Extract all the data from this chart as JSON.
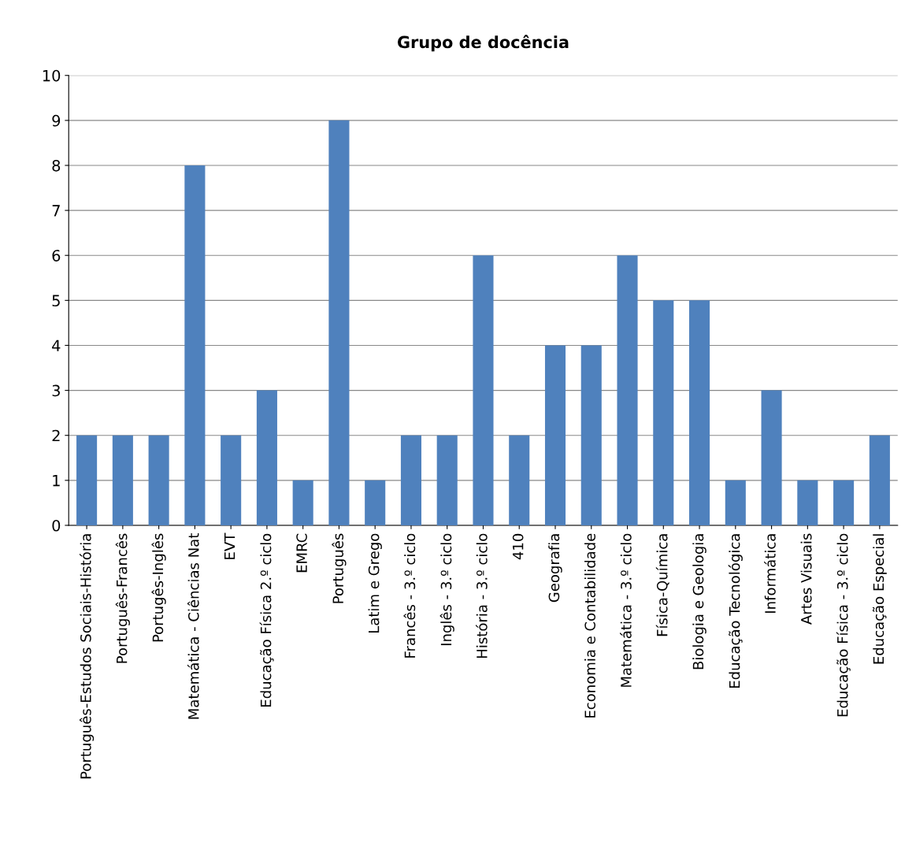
{
  "chart_data": {
    "type": "bar",
    "title": "Grupo de docência",
    "categories": [
      "Português-Estudos Sociais-História",
      "Português-Francês",
      "Portugês-Inglês",
      "Matemática - Ciências Nat",
      "EVT",
      "Educação Física 2.º ciclo",
      "EMRC",
      "Português",
      "Latim e Grego",
      "Francês - 3.º ciclo",
      "Inglês - 3.º ciclo",
      "História - 3.º ciclo",
      "410",
      "Geografia",
      "Economia e Contabilidade",
      "Matemática - 3.º ciclo",
      "Física-Química",
      "Biologia e Geologia",
      "Educação Tecnológica",
      "Informática",
      "Artes Visuais",
      "Educação Física - 3.º ciclo",
      "Educação Especial"
    ],
    "values": [
      2,
      2,
      2,
      8,
      2,
      3,
      1,
      9,
      1,
      2,
      2,
      6,
      2,
      4,
      4,
      6,
      5,
      5,
      1,
      3,
      1,
      1,
      2
    ],
    "color": "#4f81bd",
    "ylim": [
      0,
      10
    ],
    "yticks": [
      0,
      1,
      2,
      3,
      4,
      5,
      6,
      7,
      8,
      9,
      10
    ],
    "grid": "y",
    "legend": false
  }
}
